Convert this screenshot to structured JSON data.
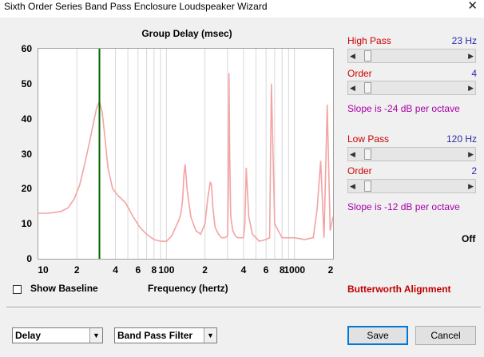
{
  "window": {
    "title": "Sixth Order Series Band Pass Enclosure Loudspeaker Wizard",
    "close_glyph": "✕"
  },
  "chart": {
    "title": "Group Delay (msec)",
    "y_ticks": [
      "60",
      "50",
      "40",
      "30",
      "20",
      "10",
      "0"
    ],
    "x_ticks": [
      "10",
      "2",
      "4",
      "6",
      "8",
      "100",
      "2",
      "4",
      "6",
      "8",
      "1000",
      "2"
    ]
  },
  "chart_data": {
    "type": "line",
    "title": "Group Delay (msec)",
    "xlabel": "Frequency (hertz)",
    "ylabel": "",
    "xscale": "log",
    "xlim": [
      10,
      2000
    ],
    "ylim": [
      0,
      60
    ],
    "grid": true,
    "series_color": "#f4a3a3",
    "marker": {
      "x": 30,
      "color": "#006400"
    },
    "series": [
      {
        "x": [
          10,
          12,
          15,
          17,
          19,
          21,
          23,
          25,
          27,
          28.5,
          30,
          31.5,
          33,
          35,
          38,
          42,
          48,
          55,
          62,
          70,
          80,
          90,
          100,
          110,
          118,
          125,
          130,
          134,
          137,
          140,
          145,
          155,
          170,
          185,
          200,
          210,
          220,
          225,
          230,
          240,
          255,
          270,
          285,
          300,
          305,
          308,
          312,
          318,
          330,
          345,
          360,
          380,
          400,
          410,
          420,
          440,
          470,
          500,
          530,
          600,
          640,
          660,
          700,
          800,
          1000,
          1200,
          1400,
          1500,
          1600,
          1700,
          1800,
          1900,
          2000
        ],
        "y": [
          13,
          13,
          13.5,
          14.5,
          17,
          21,
          27,
          33,
          39,
          43,
          45,
          42,
          35,
          26,
          20,
          18,
          16,
          12,
          9,
          7,
          5.5,
          5,
          5,
          6.5,
          9,
          11,
          13,
          17,
          24,
          27,
          20,
          12,
          8,
          7,
          10,
          17,
          22,
          21,
          15,
          9,
          7,
          6,
          6,
          6.5,
          20,
          53,
          30,
          12,
          8,
          6.5,
          6,
          6,
          6,
          10,
          26,
          12,
          7,
          6,
          5,
          5.5,
          6,
          50,
          10,
          6,
          6,
          5.5,
          6,
          14,
          28,
          6,
          44,
          8,
          12
        ]
      }
    ]
  },
  "right_panel": {
    "high_pass": {
      "label": "High Pass",
      "value": "23 Hz",
      "slider_position": 0.05
    },
    "hp_order": {
      "label": "Order",
      "value": "4",
      "slider_position": 0.05
    },
    "hp_slope": "Slope is -24 dB per octave",
    "low_pass": {
      "label": "Low Pass",
      "value": "120 Hz",
      "slider_position": 0.05
    },
    "lp_order": {
      "label": "Order",
      "value": "2",
      "slider_position": 0.05
    },
    "lp_slope": "Slope is -12 dB per octave",
    "off_text": "Off",
    "alignment": "Butterworth Alignment"
  },
  "bottom": {
    "show_baseline_label": "Show Baseline",
    "show_baseline_checked": false,
    "frequency_label": "Frequency (hertz)",
    "view_select": "Delay",
    "filter_select": "Band Pass Filter",
    "save_label": "Save",
    "cancel_label": "Cancel",
    "dropdown_glyph": "▼",
    "arrow_left": "◀",
    "arrow_right": "▶"
  }
}
